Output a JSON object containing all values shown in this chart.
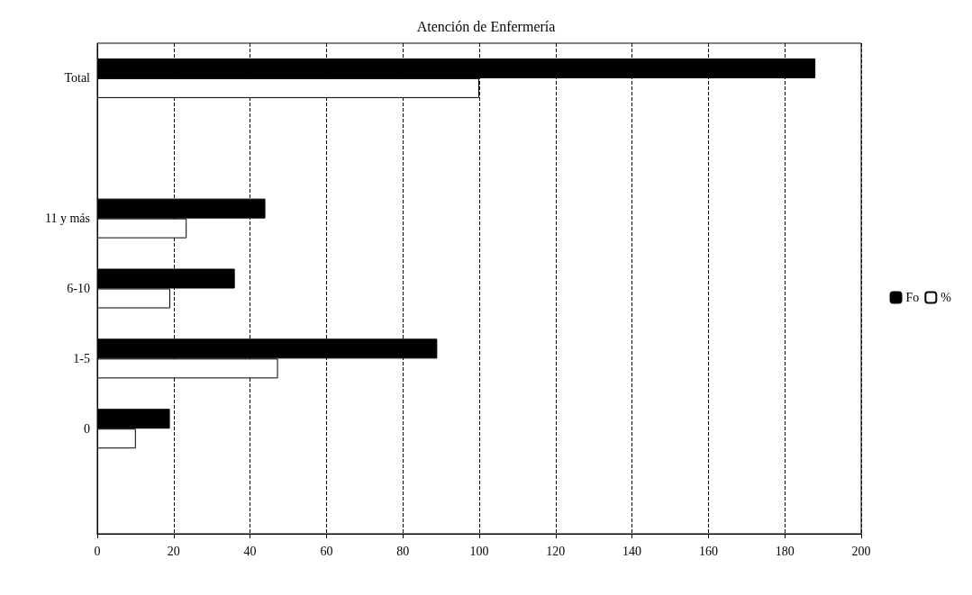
{
  "chart_data": {
    "type": "bar",
    "orientation": "horizontal",
    "title": "Atención de Enfermería",
    "categories": [
      "Total",
      null,
      "11 y más",
      "6-10",
      "1-5",
      "0",
      null
    ],
    "series": [
      {
        "name": "Fo",
        "color": "#000000",
        "values": [
          188,
          null,
          44,
          36,
          89,
          19,
          null
        ]
      },
      {
        "name": "%",
        "color": "#ffffff",
        "values": [
          100,
          null,
          23.4,
          19.1,
          47.3,
          10.1,
          null
        ]
      }
    ],
    "xlim": [
      0,
      200
    ],
    "xticks": [
      0,
      20,
      40,
      60,
      80,
      100,
      120,
      140,
      160,
      180,
      200
    ],
    "grid": "x",
    "line_style": "dashed",
    "legend": "right"
  }
}
